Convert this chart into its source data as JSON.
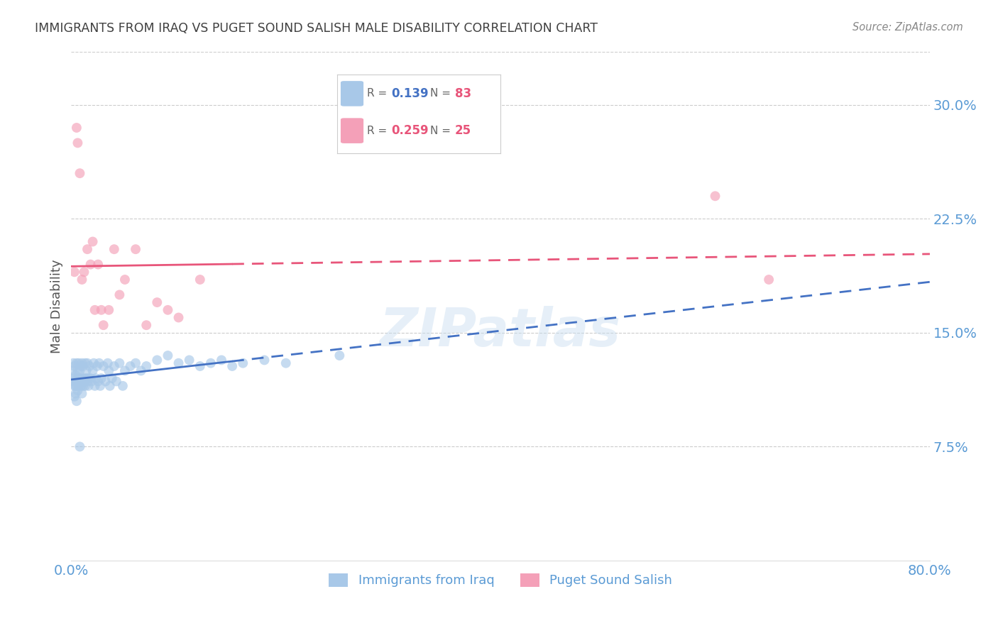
{
  "title": "IMMIGRANTS FROM IRAQ VS PUGET SOUND SALISH MALE DISABILITY CORRELATION CHART",
  "source": "Source: ZipAtlas.com",
  "ylabel": "Male Disability",
  "y_tick_labels": [
    "7.5%",
    "15.0%",
    "22.5%",
    "30.0%"
  ],
  "y_tick_values": [
    0.075,
    0.15,
    0.225,
    0.3
  ],
  "xlim": [
    0.0,
    0.8
  ],
  "ylim": [
    0.0,
    0.335
  ],
  "watermark": "ZIPatlas",
  "series1_label": "Immigrants from Iraq",
  "series1_color": "#a8c8e8",
  "series1_R": 0.139,
  "series1_N": 83,
  "series1_x": [
    0.001,
    0.002,
    0.002,
    0.002,
    0.003,
    0.003,
    0.004,
    0.004,
    0.005,
    0.005,
    0.005,
    0.006,
    0.006,
    0.006,
    0.007,
    0.007,
    0.007,
    0.008,
    0.008,
    0.008,
    0.009,
    0.009,
    0.01,
    0.01,
    0.01,
    0.011,
    0.011,
    0.012,
    0.012,
    0.013,
    0.013,
    0.014,
    0.014,
    0.015,
    0.015,
    0.016,
    0.016,
    0.017,
    0.018,
    0.019,
    0.02,
    0.021,
    0.022,
    0.023,
    0.024,
    0.025,
    0.026,
    0.027,
    0.028,
    0.03,
    0.032,
    0.034,
    0.035,
    0.036,
    0.038,
    0.04,
    0.042,
    0.045,
    0.048,
    0.05,
    0.055,
    0.06,
    0.065,
    0.07,
    0.08,
    0.09,
    0.1,
    0.11,
    0.12,
    0.13,
    0.14,
    0.15,
    0.16,
    0.18,
    0.2,
    0.25,
    0.003,
    0.004,
    0.005,
    0.006,
    0.008,
    0.01,
    0.012
  ],
  "series1_y": [
    0.125,
    0.13,
    0.118,
    0.12,
    0.115,
    0.128,
    0.11,
    0.122,
    0.118,
    0.13,
    0.115,
    0.12,
    0.118,
    0.125,
    0.13,
    0.115,
    0.12,
    0.125,
    0.118,
    0.12,
    0.128,
    0.115,
    0.13,
    0.118,
    0.12,
    0.115,
    0.128,
    0.12,
    0.118,
    0.13,
    0.115,
    0.125,
    0.12,
    0.118,
    0.13,
    0.12,
    0.115,
    0.128,
    0.12,
    0.118,
    0.125,
    0.13,
    0.115,
    0.12,
    0.128,
    0.118,
    0.13,
    0.115,
    0.12,
    0.128,
    0.118,
    0.13,
    0.125,
    0.115,
    0.12,
    0.128,
    0.118,
    0.13,
    0.115,
    0.125,
    0.128,
    0.13,
    0.125,
    0.128,
    0.132,
    0.135,
    0.13,
    0.132,
    0.128,
    0.13,
    0.132,
    0.128,
    0.13,
    0.132,
    0.13,
    0.135,
    0.108,
    0.115,
    0.105,
    0.112,
    0.075,
    0.11,
    0.118
  ],
  "series2_label": "Puget Sound Salish",
  "series2_color": "#f4a0b8",
  "series2_R": 0.259,
  "series2_N": 25,
  "series2_x": [
    0.003,
    0.005,
    0.006,
    0.008,
    0.01,
    0.012,
    0.015,
    0.018,
    0.02,
    0.022,
    0.025,
    0.028,
    0.03,
    0.035,
    0.04,
    0.045,
    0.05,
    0.06,
    0.07,
    0.08,
    0.09,
    0.1,
    0.12,
    0.6,
    0.65
  ],
  "series2_y": [
    0.19,
    0.285,
    0.275,
    0.255,
    0.185,
    0.19,
    0.205,
    0.195,
    0.21,
    0.165,
    0.195,
    0.165,
    0.155,
    0.165,
    0.205,
    0.175,
    0.185,
    0.205,
    0.155,
    0.17,
    0.165,
    0.16,
    0.185,
    0.24,
    0.185
  ],
  "line1_color": "#4472c4",
  "line2_color": "#e8557a",
  "legend_R1_text": "R = ",
  "legend_R1_val": "0.139",
  "legend_N1_text": "N = ",
  "legend_N1_val": "83",
  "legend_R2_text": "R = ",
  "legend_R2_val": "0.259",
  "legend_N2_text": "N = ",
  "legend_N2_val": "25",
  "legend_color_val": "#e8557a",
  "legend_color_R": "#555555",
  "background_color": "#ffffff",
  "grid_color": "#cccccc",
  "tick_color": "#5b9bd5",
  "title_color": "#404040",
  "ylabel_color": "#555555",
  "source_color": "#888888"
}
